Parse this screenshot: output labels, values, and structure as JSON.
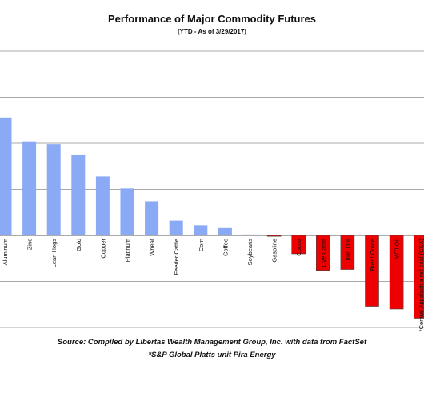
{
  "chart_data": {
    "type": "bar",
    "title": "Performance of Major Commodity Futures",
    "subtitle": "(YTD - As of 3/29/2017)",
    "categories": [
      "Aluminum",
      "Zinc",
      "Lean Hogs",
      "Gold",
      "Copper",
      "Platinum",
      "Wheat",
      "Feeder Cattle",
      "Corn",
      "Coffee",
      "Soybeans",
      "Gasoline",
      "Cocoa",
      "Live Cattle",
      "Iron Ore",
      "Brent Crude",
      "WTI Oil",
      "*Central Appalachia rail coal (CSX)"
    ],
    "values": [
      12.8,
      10.2,
      9.9,
      8.7,
      6.4,
      5.1,
      3.7,
      1.6,
      1.1,
      0.8,
      0.1,
      -0.1,
      -2.0,
      -3.8,
      -3.7,
      -7.7,
      -8.0,
      -9.0
    ],
    "ylim": [
      -10,
      20
    ],
    "positive_color": "#8AAAF5",
    "negative_color": "#EE0000",
    "gridlines": true,
    "legend": "none"
  },
  "footer": {
    "source": "Source:  Compiled by Libertas Wealth Management Group, Inc. with data from FactSet",
    "note": "*S&P Global Platts unit Pira Energy"
  }
}
